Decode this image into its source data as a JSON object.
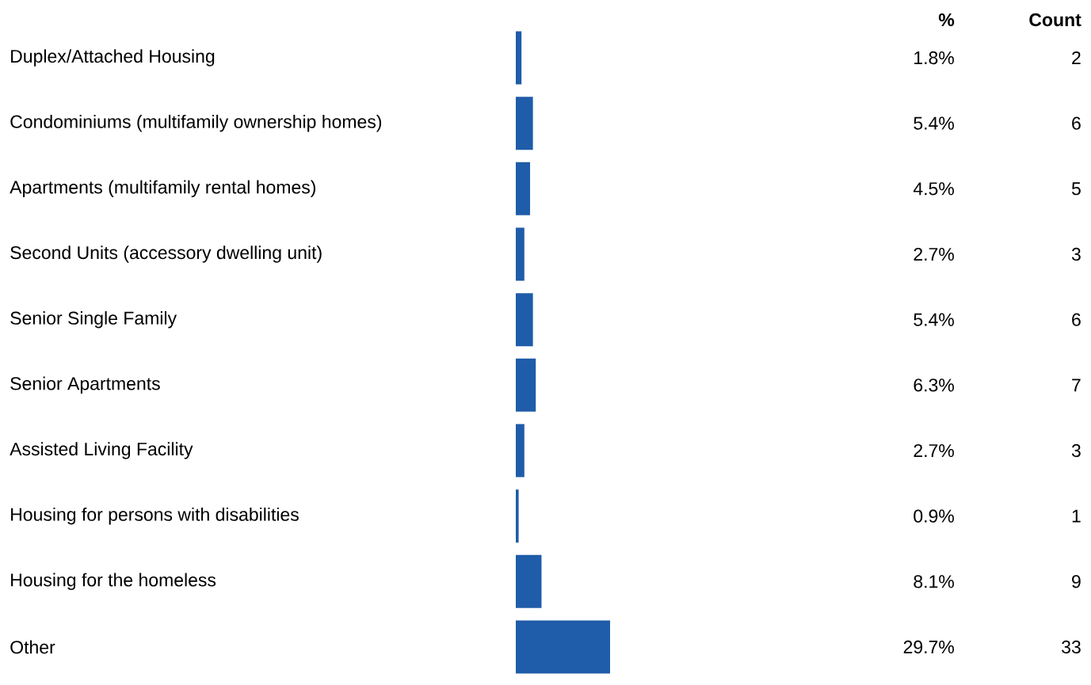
{
  "chart_data": {
    "type": "bar",
    "orientation": "horizontal",
    "categories": [
      "Duplex/Attached Housing",
      "Condominiums (multifamily ownership homes)",
      "Apartments (multifamily rental homes)",
      "Second Units (accessory dwelling unit)",
      "Senior Single Family",
      "Senior Apartments",
      "Assisted Living Facility",
      "Housing for persons with disabilities",
      "Housing for the homeless",
      "Other"
    ],
    "values": [
      1.8,
      5.4,
      4.5,
      2.7,
      5.4,
      6.3,
      2.7,
      0.9,
      8.1,
      29.7
    ],
    "value_labels": [
      "1.8%",
      "5.4%",
      "4.5%",
      "2.7%",
      "5.4%",
      "6.3%",
      "2.7%",
      "0.9%",
      "8.1%",
      "29.7%"
    ],
    "color": "#1f5ca9",
    "annotations": [
      "%",
      "Count",
      "2",
      "6",
      "5",
      "3",
      "6",
      "7",
      "3",
      "1",
      "9",
      "33"
    ]
  }
}
